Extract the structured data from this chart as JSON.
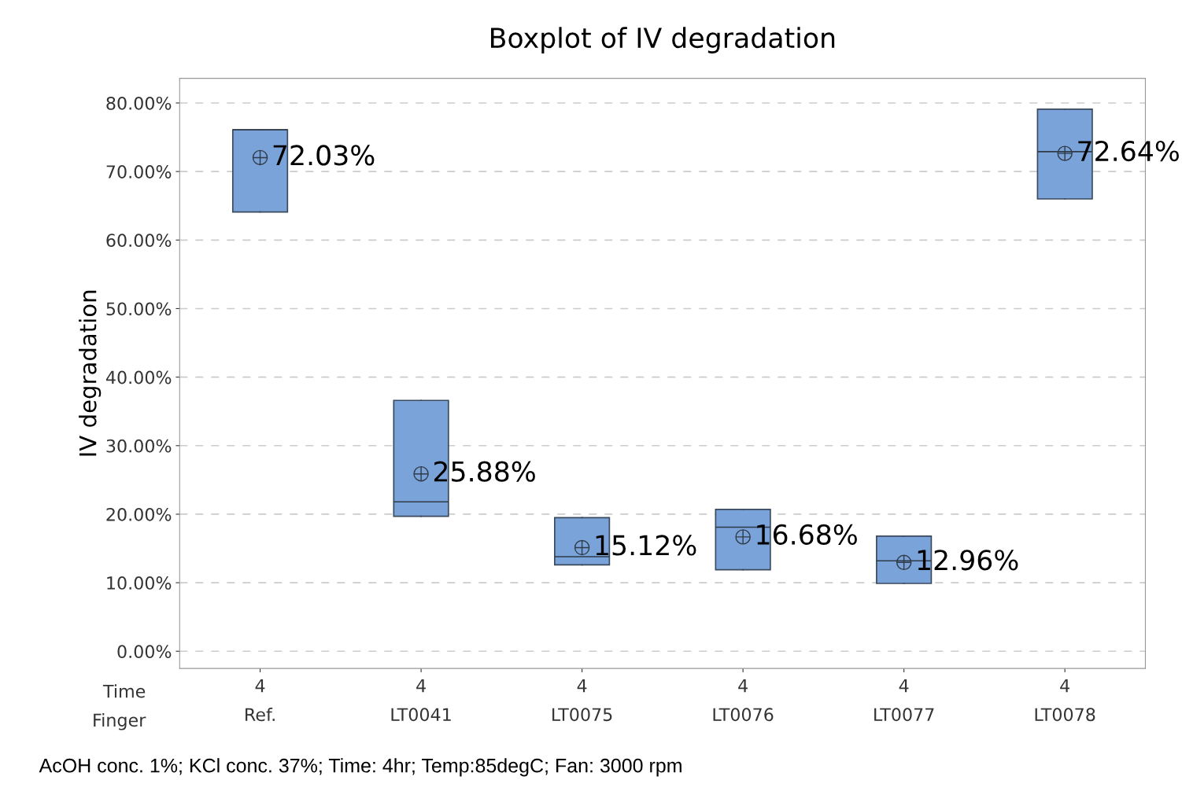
{
  "chart_data": {
    "type": "box",
    "title": "Boxplot of IV degradation",
    "ylabel": "IV degradation",
    "categories": [
      "4\nRef.",
      "4\nLT0041",
      "4\nLT0075",
      "4\nLT0076",
      "4\nLT0077",
      "4\nLT0078"
    ],
    "boxes": [
      {
        "low": 64.1,
        "q1": 64.1,
        "median": 76.1,
        "q3": 76.1,
        "high": 76.1,
        "mean": 72.03
      },
      {
        "low": 19.7,
        "q1": 19.7,
        "median": 21.8,
        "q3": 36.6,
        "high": 36.6,
        "mean": 25.88
      },
      {
        "low": 12.6,
        "q1": 12.6,
        "median": 13.8,
        "q3": 19.5,
        "high": 19.5,
        "mean": 15.12
      },
      {
        "low": 11.9,
        "q1": 11.9,
        "median": 18.1,
        "q3": 20.7,
        "high": 20.7,
        "mean": 16.68
      },
      {
        "low": 9.9,
        "q1": 9.9,
        "median": 13.2,
        "q3": 16.8,
        "high": 16.8,
        "mean": 12.96
      },
      {
        "low": 66.0,
        "q1": 66.0,
        "median": 72.9,
        "q3": 79.1,
        "high": 79.1,
        "mean": 72.64
      }
    ],
    "value_labels": [
      "72.03%",
      "25.88%",
      "15.12%",
      "16.68%",
      "12.96%",
      "72.64%"
    ],
    "color": "#7aa3d9",
    "ylim": [
      -2.5,
      83.6
    ],
    "yticks": [
      {
        "value": 0,
        "label": "0.00%"
      },
      {
        "value": 10,
        "label": "10.00%"
      },
      {
        "value": 20,
        "label": "20.00%"
      },
      {
        "value": 30,
        "label": "30.00%"
      },
      {
        "value": 40,
        "label": "40.00%"
      },
      {
        "value": 50,
        "label": "50.00%"
      },
      {
        "value": 60,
        "label": "60.00%"
      },
      {
        "value": 70,
        "label": "70.00%"
      },
      {
        "value": 80,
        "label": "80.00%"
      }
    ],
    "grid": "y",
    "annotations": [
      "Time\nFinger",
      "AcOH conc. 1%; KCl conc. 37%; Time: 4hr; Temp:85degC; Fan: 3000 rpm"
    ]
  }
}
